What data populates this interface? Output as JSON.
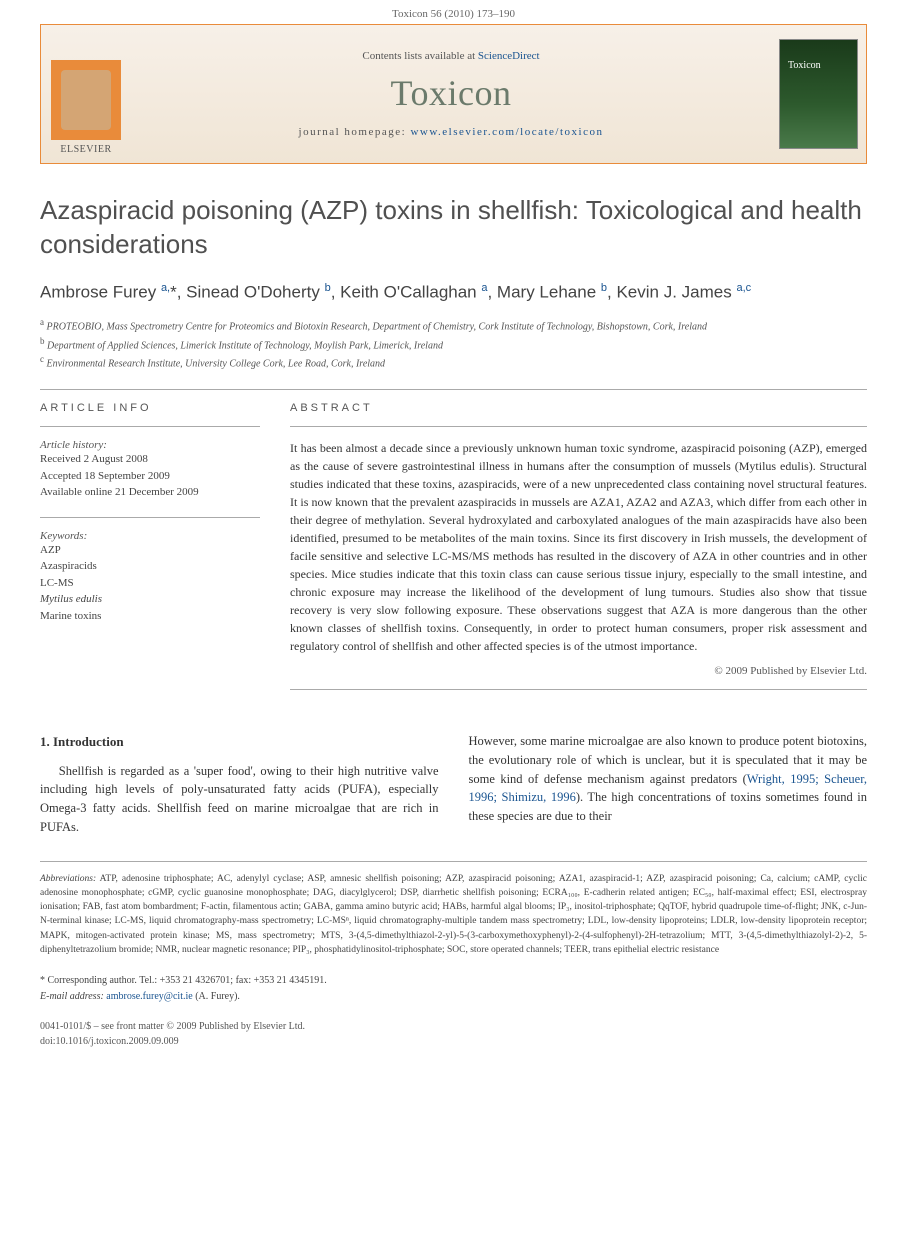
{
  "header": {
    "page_range": "Toxicon 56 (2010) 173–190"
  },
  "banner": {
    "contents_prefix": "Contents lists available at ",
    "contents_link": "ScienceDirect",
    "journal": "Toxicon",
    "homepage_prefix": "journal homepage: ",
    "homepage_url": "www.elsevier.com/locate/toxicon",
    "publisher": "ELSEVIER"
  },
  "title": "Azaspiracid poisoning (AZP) toxins in shellfish: Toxicological and health considerations",
  "authors_html": "Ambrose Furey <sup>a,</sup>*, Sinead O'Doherty <sup>b</sup>, Keith O'Callaghan <sup>a</sup>, Mary Lehane <sup>b</sup>, Kevin J. James <sup>a,c</sup>",
  "affiliations": {
    "a": "PROTEOBIO, Mass Spectrometry Centre for Proteomics and Biotoxin Research, Department of Chemistry, Cork Institute of Technology, Bishopstown, Cork, Ireland",
    "b": "Department of Applied Sciences, Limerick Institute of Technology, Moylish Park, Limerick, Ireland",
    "c": "Environmental Research Institute, University College Cork, Lee Road, Cork, Ireland"
  },
  "article_info": {
    "heading": "ARTICLE INFO",
    "history_label": "Article history:",
    "received": "Received 2 August 2008",
    "accepted": "Accepted 18 September 2009",
    "online": "Available online 21 December 2009",
    "keywords_label": "Keywords:",
    "keywords": [
      "AZP",
      "Azaspiracids",
      "LC-MS",
      "Mytilus edulis",
      "Marine toxins"
    ]
  },
  "abstract": {
    "heading": "ABSTRACT",
    "text": "It has been almost a decade since a previously unknown human toxic syndrome, azaspiracid poisoning (AZP), emerged as the cause of severe gastrointestinal illness in humans after the consumption of mussels (Mytilus edulis). Structural studies indicated that these toxins, azaspiracids, were of a new unprecedented class containing novel structural features. It is now known that the prevalent azaspiracids in mussels are AZA1, AZA2 and AZA3, which differ from each other in their degree of methylation. Several hydroxylated and carboxylated analogues of the main azaspiracids have also been identified, presumed to be metabolites of the main toxins. Since its first discovery in Irish mussels, the development of facile sensitive and selective LC-MS/MS methods has resulted in the discovery of AZA in other countries and in other species. Mice studies indicate that this toxin class can cause serious tissue injury, especially to the small intestine, and chronic exposure may increase the likelihood of the development of lung tumours. Studies also show that tissue recovery is very slow following exposure. These observations suggest that AZA is more dangerous than the other known classes of shellfish toxins. Consequently, in order to protect human consumers, proper risk assessment and regulatory control of shellfish and other affected species is of the utmost importance.",
    "copyright": "© 2009 Published by Elsevier Ltd."
  },
  "body": {
    "section1_heading": "1. Introduction",
    "col1_p1": "Shellfish is regarded as a 'super food', owing to their high nutritive valve including high levels of poly-unsaturated fatty acids (PUFA), especially Omega-3 fatty acids. Shellfish feed on marine microalgae that are rich in PUFAs.",
    "col2_p1_pre": "However, some marine microalgae are also known to produce potent biotoxins, the evolutionary role of which is unclear, but it is speculated that it may be some kind of defense mechanism against predators (",
    "col2_p1_links": "Wright, 1995; Scheuer, 1996; Shimizu, 1996",
    "col2_p1_post": "). The high concentrations of toxins sometimes found in these species are due to their"
  },
  "abbreviations": {
    "label": "Abbreviations:",
    "text": " ATP, adenosine triphosphate; AC, adenylyl cyclase; ASP, amnesic shellfish poisoning; AZP, azaspiracid poisoning; AZA1, azaspiracid-1; AZP, azaspiracid poisoning; Ca, calcium; cAMP, cyclic adenosine monophosphate; cGMP, cyclic guanosine monophosphate; DAG, diacylglycerol; DSP, diarrhetic shellfish poisoning; ECRA₁₀₀, E-cadherin related antigen; EC₅₀, half-maximal effect; ESI, electrospray ionisation; FAB, fast atom bombardment; F-actin, filamentous actin; GABA, gamma amino butyric acid; HABs, harmful algal blooms; IP₃, inositol-triphosphate; QqTOF, hybrid quadrupole time-of-flight; JNK, c-Jun-N-terminal kinase; LC-MS, liquid chromatography-mass spectrometry; LC-MSⁿ, liquid chromatography-multiple tandem mass spectrometry; LDL, low-density lipoproteins; LDLR, low-density lipoprotein receptor; MAPK, mitogen-activated protein kinase; MS, mass spectrometry; MTS, 3-(4,5-dimethylthiazol-2-yl)-5-(3-carboxymethoxyphenyl)-2-(4-sulfophenyl)-2H-tetrazolium; MTT, 3-(4,5-dimethylthiazolyl-2)-2, 5-diphenyltetrazolium bromide; NMR, nuclear magnetic resonance; PIP₃, phosphatidylinositol-triphosphate; SOC, store operated channels; TEER, trans epithelial electric resistance"
  },
  "corresp": {
    "label": "* Corresponding author. ",
    "contact": "Tel.: +353 21 4326701; fax: +353 21 4345191.",
    "email_label": "E-mail address: ",
    "email": "ambrose.furey@cit.ie",
    "email_suffix": " (A. Furey)."
  },
  "footer": {
    "line1": "0041-0101/$ – see front matter © 2009 Published by Elsevier Ltd.",
    "line2": "doi:10.1016/j.toxicon.2009.09.009"
  },
  "colors": {
    "accent_orange": "#e98b3a",
    "link_blue": "#1a5490",
    "journal_green": "#6b7a6b",
    "banner_bg_top": "#f7f0e8",
    "banner_bg_bottom": "#f0e5d5"
  }
}
